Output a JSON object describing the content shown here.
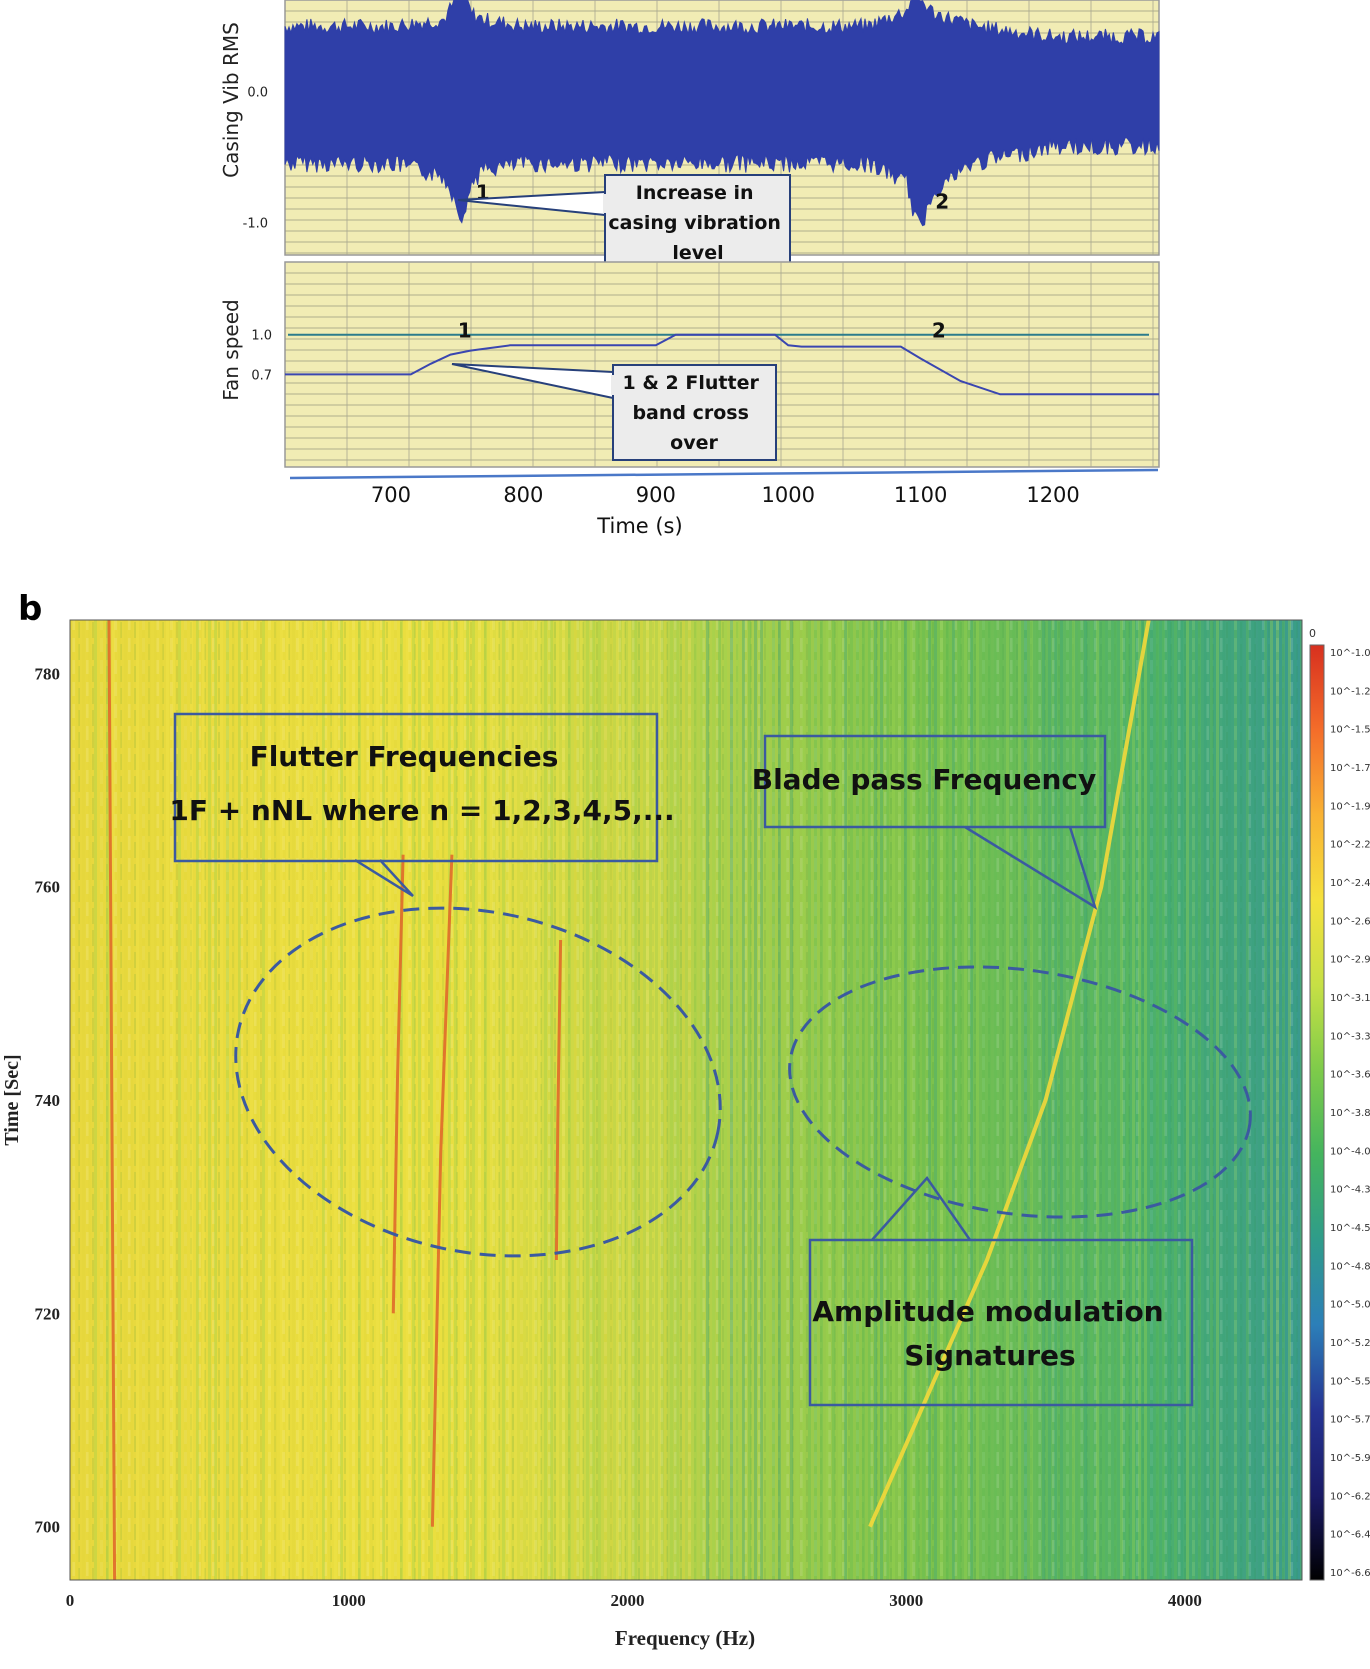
{
  "chart_data": [
    {
      "panel": "a",
      "type": "line",
      "xlabel": "Time (s)",
      "x_ticks": [
        700,
        800,
        900,
        1000,
        1100,
        1200
      ],
      "xlim": [
        620,
        1280
      ],
      "subplots": [
        {
          "ylabel": "Casing Vib RMS",
          "y_ticks": [
            {
              "value": 0.0,
              "label": "0.0"
            },
            {
              "value": -1.0,
              "label": "-1.0"
            }
          ],
          "ylim": [
            -1.25,
            0.7
          ],
          "series_color": "#2f3fa8",
          "envelope": {
            "x": [
              620,
              700,
              740,
              750,
              755,
              760,
              770,
              800,
              900,
              1000,
              1060,
              1090,
              1095,
              1100,
              1110,
              1140,
              1200,
              1280
            ],
            "upper": [
              0.5,
              0.5,
              0.55,
              0.72,
              0.85,
              0.6,
              0.55,
              0.5,
              0.5,
              0.5,
              0.5,
              0.62,
              0.8,
              0.7,
              0.6,
              0.5,
              0.42,
              0.42
            ],
            "lower": [
              -0.55,
              -0.55,
              -0.65,
              -0.85,
              -1.0,
              -0.7,
              -0.6,
              -0.55,
              -0.55,
              -0.55,
              -0.55,
              -0.7,
              -0.95,
              -1.05,
              -0.75,
              -0.55,
              -0.42,
              -0.42
            ]
          },
          "annotations": [
            {
              "marker": "1",
              "x": 755,
              "y": -0.78
            },
            {
              "marker": "2",
              "x": 1102,
              "y": -0.85
            },
            {
              "callout": "Increase in casing vibration level"
            }
          ]
        },
        {
          "ylabel": "Fan speed",
          "y_ticks": [
            {
              "value": 1.0,
              "label": "1.0"
            },
            {
              "value": 0.7,
              "label": "0.7"
            }
          ],
          "ylim": [
            0.0,
            1.55
          ],
          "series_color": "#3a46b0",
          "reference_line": {
            "y": 1.0,
            "color": "#2c7c8c"
          },
          "x": [
            620,
            715,
            730,
            745,
            760,
            790,
            800,
            900,
            915,
            990,
            1000,
            1010,
            1085,
            1100,
            1130,
            1160,
            1280
          ],
          "y": [
            0.7,
            0.7,
            0.78,
            0.85,
            0.88,
            0.92,
            0.92,
            0.92,
            1.0,
            1.0,
            0.92,
            0.91,
            0.91,
            0.82,
            0.65,
            0.55,
            0.55
          ],
          "annotations": [
            {
              "marker": "1",
              "x": 755,
              "y": 0.98
            },
            {
              "marker": "2",
              "x": 1113,
              "y": 0.98
            },
            {
              "callout": "1 & 2 Flutter band cross over"
            }
          ]
        }
      ]
    },
    {
      "panel": "b",
      "type": "heatmap",
      "xlabel": "Frequency (Hz)",
      "ylabel": "Time [Sec]",
      "x_ticks": [
        0,
        1000,
        2000,
        3000,
        4000
      ],
      "y_ticks": [
        700,
        720,
        740,
        760,
        780
      ],
      "xlim": [
        0,
        4420
      ],
      "ylim": [
        695,
        785
      ],
      "colorbar": {
        "header": "0",
        "scale": "log",
        "labels": [
          "10^-1.03",
          "10^-1.27",
          "10^-1.50",
          "10^-1.74",
          "10^-1.97",
          "10^-2.21",
          "10^-2.44",
          "10^-2.68",
          "10^-2.92",
          "10^-3.15",
          "10^-3.39",
          "10^-3.62",
          "10^-3.86",
          "10^-4.09",
          "10^-4.33",
          "10^-4.56",
          "10^-4.80",
          "10^-5.03",
          "10^-5.27",
          "10^-5.51",
          "10^-5.74",
          "10^-5.98",
          "10^-6.21",
          "10^-6.45",
          "10^-6.68"
        ],
        "colors": [
          "#d7301f",
          "#f46d2a",
          "#f9b233",
          "#f5e13c",
          "#c6e045",
          "#7ecb4a",
          "#44b45e",
          "#2f9c8a",
          "#2c7fb8",
          "#253494",
          "#1a1a66",
          "#000000"
        ]
      },
      "ridges": [
        {
          "name": "flutter-line",
          "points": [
            [
              140,
              785
            ],
            [
              150,
              740
            ],
            [
              160,
              695
            ]
          ]
        },
        {
          "name": "flutter-line",
          "points": [
            [
              1195,
              763
            ],
            [
              1175,
              742
            ],
            [
              1160,
              720
            ]
          ]
        },
        {
          "name": "flutter-line",
          "points": [
            [
              1370,
              763
            ],
            [
              1330,
              735
            ],
            [
              1300,
              700
            ]
          ]
        },
        {
          "name": "flutter-line",
          "points": [
            [
              1760,
              755
            ],
            [
              1750,
              738
            ],
            [
              1745,
              725
            ]
          ]
        },
        {
          "name": "blade-pass",
          "points": [
            [
              3870,
              785
            ],
            [
              3700,
              760
            ],
            [
              3500,
              740
            ],
            [
              3290,
              725
            ],
            [
              2870,
              700
            ]
          ]
        }
      ],
      "annotations": [
        {
          "callout": "Flutter Frequencies",
          "line2": "1F + nNL where n = 1,2,3,4,5,..."
        },
        {
          "callout": "Blade pass Frequency"
        },
        {
          "callout": "Amplitude modulation",
          "line2": "Signatures"
        }
      ]
    }
  ],
  "panel_b_label": "b"
}
